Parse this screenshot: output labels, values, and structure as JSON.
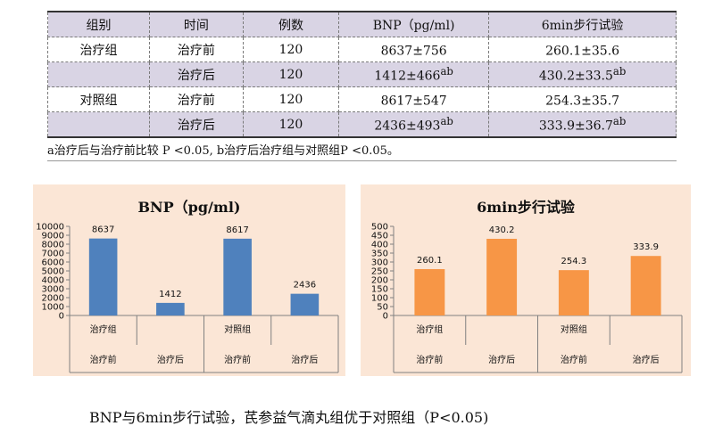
{
  "table": {
    "headers": [
      "组别",
      "时间",
      "例数",
      "BNP（pg/ml)",
      "6min步行试验"
    ],
    "rows": [
      {
        "group": "治疗组",
        "time": "治疗前",
        "n": "120",
        "bnp": "8637±756",
        "bnp_sup": "",
        "walk": "260.1±35.6",
        "walk_sup": ""
      },
      {
        "group": "",
        "time": "治疗后",
        "n": "120",
        "bnp": "1412±466",
        "bnp_sup": "ab",
        "walk": "430.2±33.5",
        "walk_sup": "ab"
      },
      {
        "group": "对照组",
        "time": "治疗前",
        "n": "120",
        "bnp": "8617±547",
        "bnp_sup": "",
        "walk": "254.3±35.7",
        "walk_sup": ""
      },
      {
        "group": "",
        "time": "治疗后",
        "n": "120",
        "bnp": "2436±493",
        "bnp_sup": "ab",
        "walk": "333.9±36.7",
        "walk_sup": "ab"
      }
    ],
    "note": "a治疗后与治疗前比较 P <0.05, b治疗后治疗组与对照组P <0.05。"
  },
  "chart_data": [
    {
      "type": "bar",
      "title": "BNP（pg/ml)",
      "categories": [
        [
          "治疗组",
          "治疗前"
        ],
        [
          "",
          "治疗后"
        ],
        [
          "对照组",
          "治疗前"
        ],
        [
          "",
          "治疗后"
        ]
      ],
      "values": [
        8637,
        1412,
        8617,
        2436
      ],
      "ylim": [
        0,
        10000
      ],
      "ytick_step": 1000,
      "color": "#4f81bd"
    },
    {
      "type": "bar",
      "title": "6min步行试验",
      "categories": [
        [
          "治疗组",
          "治疗前"
        ],
        [
          "",
          "治疗后"
        ],
        [
          "对照组",
          "治疗前"
        ],
        [
          "",
          "治疗后"
        ]
      ],
      "values": [
        260.1,
        430.2,
        254.3,
        333.9
      ],
      "ylim": [
        0,
        500
      ],
      "ytick_step": 50,
      "color": "#f79646"
    }
  ],
  "caption": "BNP与6min步行试验，芪参益气滴丸组优于对照组（P<0.05)"
}
